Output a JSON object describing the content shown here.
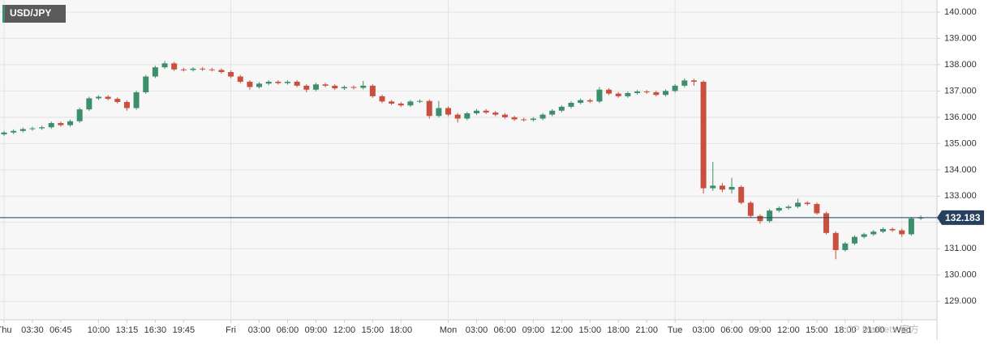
{
  "chart_data": {
    "type": "candlestick",
    "title": "USD/JPY",
    "watermark": "CP Markets 官方",
    "up_color": "#3d8f6c",
    "down_color": "#c9503f",
    "price_line_color": "#27405e",
    "last_price": 132.183,
    "ylim": [
      128.3,
      140.46
    ],
    "yticks": [
      {
        "value": 129,
        "label": "129.000"
      },
      {
        "value": 130,
        "label": "130.000"
      },
      {
        "value": 131,
        "label": "131.000"
      },
      {
        "value": 132,
        "label": "132.000"
      },
      {
        "value": 133,
        "label": "133.000"
      },
      {
        "value": 134,
        "label": "134.000"
      },
      {
        "value": 135,
        "label": "135.000"
      },
      {
        "value": 136,
        "label": "136.000"
      },
      {
        "value": 137,
        "label": "137.000"
      },
      {
        "value": 138,
        "label": "138.000"
      },
      {
        "value": 139,
        "label": "139.000"
      },
      {
        "value": 140,
        "label": "140.000"
      }
    ],
    "grid": true,
    "categories": [
      "Thu",
      null,
      null,
      "03:30",
      null,
      null,
      "06:45",
      null,
      null,
      null,
      "10:00",
      null,
      null,
      "13:15",
      null,
      null,
      "16:30",
      null,
      null,
      "19:45",
      null,
      null,
      null,
      null,
      "Fri",
      null,
      null,
      "03:00",
      null,
      null,
      "06:00",
      null,
      null,
      "09:00",
      null,
      null,
      "12:00",
      null,
      null,
      "15:00",
      null,
      null,
      "18:00",
      null,
      null,
      null,
      null,
      "Mon",
      null,
      null,
      "03:00",
      null,
      null,
      "06:00",
      null,
      null,
      "09:00",
      null,
      null,
      "12:00",
      null,
      null,
      "15:00",
      null,
      null,
      "18:00",
      null,
      null,
      "21:00",
      null,
      null,
      "Tue",
      null,
      null,
      "03:00",
      null,
      null,
      "06:00",
      null,
      null,
      "09:00",
      null,
      null,
      "12:00",
      null,
      null,
      "15:00",
      null,
      null,
      "18:00",
      null,
      null,
      "21:00",
      null,
      null,
      "Wed",
      null,
      null
    ],
    "open": [
      135.35,
      135.42,
      135.48,
      135.55,
      135.58,
      135.62,
      135.78,
      135.7,
      135.85,
      136.3,
      136.72,
      136.78,
      136.7,
      136.58,
      136.35,
      136.95,
      137.55,
      137.9,
      138.05,
      137.82,
      137.8,
      137.85,
      137.82,
      137.8,
      137.72,
      137.55,
      137.35,
      137.15,
      137.28,
      137.35,
      137.3,
      137.35,
      137.2,
      137.05,
      137.25,
      137.2,
      137.1,
      137.15,
      137.12,
      137.2,
      136.8,
      136.6,
      136.52,
      136.45,
      136.6,
      136.62,
      136.05,
      136.35,
      136.1,
      135.95,
      136.15,
      136.25,
      136.18,
      136.1,
      136.0,
      135.92,
      135.9,
      135.95,
      136.1,
      136.25,
      136.4,
      136.55,
      136.65,
      136.6,
      137.05,
      136.9,
      136.8,
      136.92,
      136.98,
      136.95,
      136.85,
      137.0,
      137.2,
      137.4,
      137.35,
      133.3,
      133.4,
      133.25,
      133.35,
      132.75,
      132.25,
      132.05,
      132.45,
      132.55,
      132.6,
      132.75,
      132.7,
      132.35,
      131.6,
      130.95,
      131.2,
      131.45,
      131.55,
      131.65,
      131.75,
      131.7,
      131.55,
      132.15
    ],
    "high": [
      135.48,
      135.54,
      135.61,
      135.64,
      135.68,
      135.84,
      135.84,
      135.91,
      136.36,
      136.78,
      136.84,
      136.84,
      136.76,
      136.64,
      137.01,
      137.61,
      137.96,
      138.14,
      138.11,
      137.88,
      137.91,
      137.91,
      137.88,
      137.86,
      137.78,
      137.61,
      137.41,
      137.34,
      137.41,
      137.41,
      137.41,
      137.41,
      137.26,
      137.31,
      137.31,
      137.26,
      137.21,
      137.21,
      137.38,
      137.26,
      136.86,
      136.66,
      136.58,
      136.66,
      136.68,
      136.68,
      136.62,
      136.41,
      136.16,
      136.21,
      136.31,
      136.31,
      136.24,
      136.16,
      136.06,
      135.98,
      136.01,
      136.16,
      136.31,
      136.46,
      136.61,
      136.71,
      136.71,
      137.15,
      137.11,
      136.96,
      136.98,
      137.04,
      137.04,
      137.01,
      137.06,
      137.26,
      137.48,
      137.46,
      137.41,
      134.3,
      133.5,
      133.7,
      133.41,
      132.81,
      132.31,
      132.51,
      132.61,
      132.66,
      132.9,
      132.81,
      132.76,
      132.41,
      131.66,
      131.26,
      131.51,
      131.61,
      131.71,
      131.81,
      131.81,
      131.76,
      132.21,
      132.26
    ],
    "low": [
      135.29,
      135.36,
      135.42,
      135.49,
      135.52,
      135.56,
      135.64,
      135.64,
      135.79,
      136.24,
      136.66,
      136.64,
      136.52,
      136.25,
      136.29,
      136.89,
      137.49,
      137.84,
      137.76,
      137.74,
      137.74,
      137.76,
      137.74,
      137.66,
      137.49,
      137.29,
      137.05,
      137.09,
      137.22,
      137.24,
      137.24,
      137.14,
      136.95,
      136.99,
      137.14,
      137.04,
      137.04,
      137.06,
      137.06,
      136.74,
      136.54,
      136.46,
      136.39,
      136.39,
      136.54,
      135.95,
      135.99,
      136.04,
      135.8,
      135.89,
      136.09,
      136.12,
      136.04,
      135.94,
      135.86,
      135.84,
      135.84,
      135.89,
      136.04,
      136.19,
      136.34,
      136.49,
      136.54,
      136.54,
      136.84,
      136.74,
      136.74,
      136.86,
      136.89,
      136.79,
      136.79,
      136.94,
      137.14,
      137.2,
      133.1,
      133.2,
      133.15,
      133.1,
      132.69,
      132.19,
      131.95,
      131.99,
      132.39,
      132.49,
      132.54,
      132.64,
      132.29,
      131.54,
      130.6,
      130.89,
      131.14,
      131.39,
      131.49,
      131.59,
      131.64,
      131.45,
      131.49,
      132.09
    ],
    "close": [
      135.42,
      135.48,
      135.55,
      135.58,
      135.62,
      135.78,
      135.7,
      135.85,
      136.3,
      136.72,
      136.78,
      136.7,
      136.58,
      136.35,
      136.95,
      137.55,
      137.9,
      138.05,
      137.82,
      137.8,
      137.85,
      137.82,
      137.8,
      137.72,
      137.55,
      137.35,
      137.15,
      137.28,
      137.35,
      137.3,
      137.35,
      137.2,
      137.05,
      137.25,
      137.2,
      137.1,
      137.15,
      137.12,
      137.2,
      136.8,
      136.6,
      136.52,
      136.45,
      136.6,
      136.62,
      136.05,
      136.35,
      136.1,
      135.95,
      136.15,
      136.25,
      136.18,
      136.1,
      136.0,
      135.92,
      135.9,
      135.95,
      136.1,
      136.25,
      136.4,
      136.55,
      136.65,
      136.6,
      137.05,
      136.9,
      136.8,
      136.92,
      136.98,
      136.95,
      136.85,
      137.0,
      137.2,
      137.4,
      137.35,
      133.3,
      133.4,
      133.25,
      133.35,
      132.75,
      132.25,
      132.05,
      132.45,
      132.55,
      132.6,
      132.75,
      132.7,
      132.35,
      131.6,
      130.95,
      131.2,
      131.45,
      131.55,
      131.65,
      131.75,
      131.7,
      131.55,
      132.15,
      132.18
    ]
  }
}
